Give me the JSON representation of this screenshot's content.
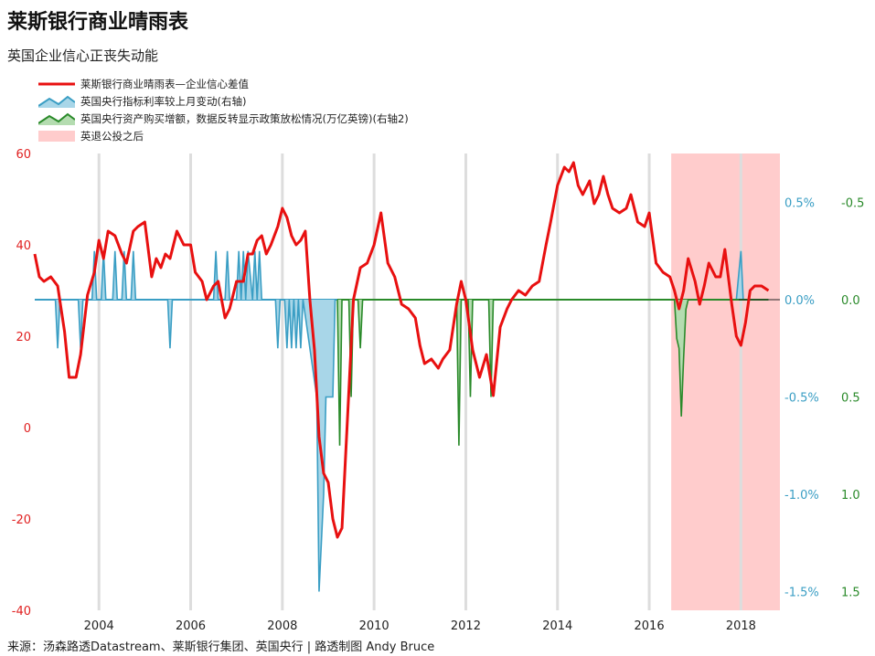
{
  "title": "莱斯银行商业晴雨表",
  "subtitle": "英国企业信心正丧失动能",
  "legend": [
    {
      "label": "莱斯银行商业晴雨表—企业信心差值",
      "kind": "line",
      "color": "#e81010"
    },
    {
      "label": "英国央行指标利率较上月变动(右轴)",
      "kind": "area-blue",
      "color": "#3a9ec4"
    },
    {
      "label": "英国央行资产购买增额，数据反转显示政策放松情况(万亿英镑)(右轴2)",
      "kind": "area-green",
      "color": "#2a8a2a"
    },
    {
      "label": "英退公投之后",
      "kind": "shade",
      "color": "#ffcccc"
    }
  ],
  "source": "来源：汤森路透Datastream、莱斯银行集团、英国央行 | 路透制图 Andy Bruce",
  "colors": {
    "red": "#e81010",
    "blue": "#3a9ec4",
    "blue_fill": "#a8d6e8",
    "green": "#2a8a2a",
    "green_fill": "#b4dcb0",
    "shade": "#ffcccc",
    "grid": "#dddddd"
  },
  "chart_data": {
    "type": "line",
    "x_ticks": [
      "2004",
      "2006",
      "2008",
      "2010",
      "2012",
      "2014",
      "2016",
      "2018"
    ],
    "x_range": [
      2002.6,
      2018.85
    ],
    "y_left": {
      "range": [
        -40,
        60
      ],
      "ticks": [
        "60",
        "40",
        "20",
        "0",
        "-20",
        "-40"
      ],
      "tick_values": [
        60,
        40,
        20,
        0,
        -20,
        -40
      ]
    },
    "y_right1": {
      "range": [
        -1.5,
        0.5
      ],
      "ticks": [
        "0.5%",
        "0.0%",
        "-0.5%",
        "-1.0%",
        "-1.5%"
      ],
      "tick_values": [
        0.5,
        0.0,
        -0.5,
        -1.0,
        -1.5
      ]
    },
    "y_right2": {
      "ticks": [
        "-0.5",
        "0.0",
        "0.5",
        "1.0",
        "1.5"
      ],
      "tick_values": [
        -0.5,
        0.0,
        0.5,
        1.0,
        1.5
      ]
    },
    "brexit_shade": [
      2016.48,
      2018.85
    ],
    "series": [
      {
        "name": "莱斯银行商业晴雨表—企业信心差值",
        "axis": "left",
        "x": [
          2002.6,
          2002.7,
          2002.8,
          2002.95,
          2003.1,
          2003.25,
          2003.35,
          2003.5,
          2003.6,
          2003.75,
          2003.9,
          2004.0,
          2004.1,
          2004.2,
          2004.35,
          2004.5,
          2004.6,
          2004.75,
          2004.85,
          2005.0,
          2005.15,
          2005.25,
          2005.35,
          2005.45,
          2005.55,
          2005.7,
          2005.85,
          2006.0,
          2006.1,
          2006.25,
          2006.35,
          2006.5,
          2006.6,
          2006.75,
          2006.85,
          2007.0,
          2007.15,
          2007.25,
          2007.35,
          2007.45,
          2007.55,
          2007.65,
          2007.75,
          2007.9,
          2008.0,
          2008.1,
          2008.2,
          2008.3,
          2008.4,
          2008.5,
          2008.6,
          2008.7,
          2008.8,
          2008.9,
          2009.0,
          2009.1,
          2009.2,
          2009.3,
          2009.4,
          2009.55,
          2009.7,
          2009.85,
          2010.0,
          2010.15,
          2010.3,
          2010.45,
          2010.6,
          2010.75,
          2010.9,
          2011.0,
          2011.1,
          2011.25,
          2011.4,
          2011.5,
          2011.65,
          2011.8,
          2011.9,
          2012.0,
          2012.15,
          2012.3,
          2012.45,
          2012.6,
          2012.75,
          2012.9,
          2013.0,
          2013.15,
          2013.3,
          2013.45,
          2013.6,
          2013.75,
          2013.85,
          2014.0,
          2014.15,
          2014.25,
          2014.35,
          2014.45,
          2014.55,
          2014.7,
          2014.8,
          2014.9,
          2015.0,
          2015.1,
          2015.2,
          2015.35,
          2015.5,
          2015.6,
          2015.75,
          2015.9,
          2016.0,
          2016.15,
          2016.3,
          2016.45,
          2016.55,
          2016.65,
          2016.75,
          2016.85,
          2017.0,
          2017.1,
          2017.2,
          2017.3,
          2017.45,
          2017.55,
          2017.65,
          2017.8,
          2017.9,
          2018.0,
          2018.1,
          2018.2,
          2018.3,
          2018.45,
          2018.6
        ],
        "values": [
          38,
          33,
          32,
          33,
          31,
          21,
          11,
          11,
          16,
          29,
          34,
          41,
          37,
          43,
          42,
          38,
          36,
          43,
          44,
          45,
          33,
          37,
          35,
          38,
          37,
          43,
          40,
          40,
          34,
          32,
          28,
          31,
          32,
          24,
          26,
          32,
          32,
          38,
          38,
          41,
          42,
          38,
          40,
          44,
          48,
          46,
          42,
          40,
          41,
          43,
          28,
          17,
          -2,
          -10,
          -12,
          -20,
          -24,
          -22,
          -2,
          28,
          35,
          36,
          40,
          47,
          36,
          33,
          27,
          26,
          24,
          18,
          14,
          15,
          13,
          15,
          17,
          27,
          32,
          28,
          17,
          11,
          16,
          7,
          22,
          26,
          28,
          30,
          29,
          31,
          32,
          40,
          45,
          53,
          57,
          56,
          58,
          53,
          51,
          54,
          49,
          51,
          55,
          51,
          48,
          47,
          48,
          51,
          45,
          44,
          47,
          36,
          34,
          33,
          30,
          26,
          30,
          37,
          32,
          27,
          31,
          36,
          33,
          33,
          39,
          27,
          20,
          18,
          23,
          30,
          31,
          31,
          30
        ]
      },
      {
        "name": "英国央行指标利率较上月变动(右轴)",
        "axis": "right1",
        "x": [
          2002.6,
          2003.05,
          2003.1,
          2003.15,
          2003.55,
          2003.6,
          2003.65,
          2003.85,
          2003.9,
          2003.95,
          2004.05,
          2004.1,
          2004.15,
          2004.3,
          2004.35,
          2004.4,
          2004.5,
          2004.55,
          2004.6,
          2004.7,
          2004.75,
          2004.8,
          2005.5,
          2005.55,
          2005.6,
          2005.75,
          2006.5,
          2006.55,
          2006.6,
          2006.75,
          2006.8,
          2006.85,
          2006.9,
          2007.0,
          2007.05,
          2007.1,
          2007.15,
          2007.2,
          2007.25,
          2007.35,
          2007.4,
          2007.45,
          2007.5,
          2007.55,
          2007.6,
          2007.85,
          2007.9,
          2007.95,
          2008.05,
          2008.1,
          2008.15,
          2008.2,
          2008.25,
          2008.3,
          2008.35,
          2008.4,
          2008.45,
          2008.75,
          2008.8,
          2008.9,
          2008.95,
          2009.0,
          2009.05,
          2009.1,
          2009.15,
          2009.2,
          2009.25,
          2009.3,
          2009.35,
          2009.4,
          2009.45,
          2017.8,
          2017.85,
          2017.9,
          2018.0,
          2018.05,
          2018.6
        ],
        "values": [
          0,
          0,
          -0.25,
          0,
          0,
          -0.25,
          0,
          0,
          0.25,
          0,
          0,
          0.25,
          0,
          0,
          0.25,
          0,
          0,
          0.25,
          0,
          0,
          0.25,
          0,
          0,
          -0.25,
          0,
          0,
          0,
          0.25,
          0,
          0,
          0.25,
          0,
          0,
          0,
          0.25,
          0,
          0.25,
          0,
          0.25,
          0,
          0.25,
          0,
          0.25,
          0,
          0,
          0,
          -0.25,
          0,
          0,
          -0.25,
          0,
          -0.25,
          0,
          -0.25,
          0,
          -0.25,
          0,
          -0.5,
          -1.5,
          -1.0,
          -0.5,
          -0.5,
          -0.5,
          -0.5,
          0,
          0,
          0,
          0,
          0,
          0,
          0,
          0,
          0,
          0,
          0.25,
          0,
          0
        ]
      },
      {
        "name": "英国央行资产购买增额，数据反转显示政策放松情况(万亿英镑)(右轴2)",
        "axis": "right2",
        "x": [
          2009.2,
          2009.25,
          2009.3,
          2009.35,
          2009.45,
          2009.5,
          2009.55,
          2009.65,
          2009.7,
          2009.75,
          2009.85,
          2009.9,
          2009.95,
          2011.8,
          2011.85,
          2011.9,
          2012.05,
          2012.1,
          2012.15,
          2012.5,
          2012.55,
          2012.6,
          2016.55,
          2016.6,
          2016.65,
          2016.7,
          2016.75,
          2016.8,
          2016.85
        ],
        "values": [
          0,
          0.75,
          0,
          0,
          0,
          0.5,
          0,
          0,
          0.25,
          0,
          0,
          0,
          0,
          0,
          0.75,
          0,
          0,
          0.5,
          0,
          0,
          0.5,
          0,
          0,
          0.2,
          0.25,
          0.6,
          0.3,
          0.05,
          0
        ]
      }
    ]
  }
}
